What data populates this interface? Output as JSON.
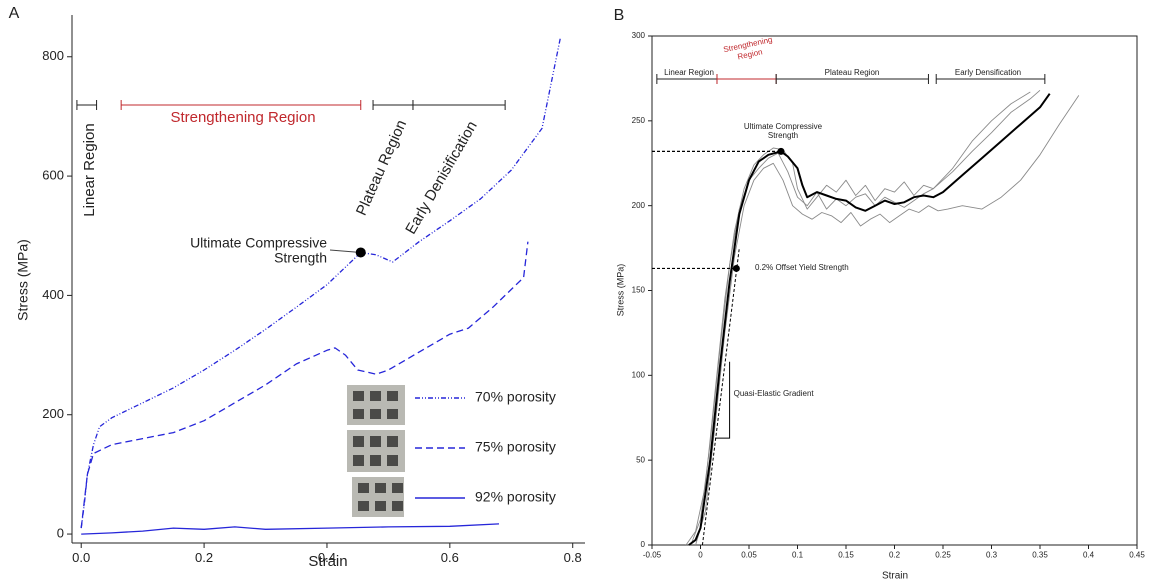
{
  "chart_data": [
    {
      "type": "line",
      "panel_label": "A",
      "xlabel": "Strain",
      "ylabel": "Stress (MPa)",
      "xlim": [
        -0.015,
        0.82
      ],
      "ylim": [
        -15,
        870
      ],
      "xticks": [
        {
          "value": 0,
          "label": "0.0"
        },
        0.2,
        0.4,
        0.6,
        0.8
      ],
      "yticks": [
        0,
        200,
        400,
        600,
        800
      ],
      "grid": false,
      "legend": "lower right",
      "regions": [
        {
          "label": [
            "Linear Region"
          ],
          "x": [
            -0.007,
            0.025
          ],
          "color": "#222222"
        },
        {
          "label": [
            "Strengthening Region"
          ],
          "x": [
            0.065,
            0.455
          ],
          "color": "#c0282d"
        },
        {
          "label": [
            "Plateau Region"
          ],
          "x": [
            0.475,
            0.54
          ],
          "color": "#222222"
        },
        {
          "label": [
            "Early Denisification"
          ],
          "x": [
            0.54,
            0.69
          ],
          "color": "#222222"
        }
      ],
      "annotations": [
        {
          "label": [
            "Ultimate Compressive",
            "Strength"
          ],
          "x": 0.455,
          "y": 472,
          "guide": false
        }
      ],
      "series": [
        {
          "name": "70% porosity",
          "color": "#2626d9",
          "dash": "dashdot",
          "x": [
            0,
            0.005,
            0.01,
            0.02,
            0.03,
            0.05,
            0.1,
            0.15,
            0.2,
            0.25,
            0.3,
            0.35,
            0.4,
            0.455,
            0.48,
            0.507,
            0.55,
            0.6,
            0.65,
            0.7,
            0.75,
            0.78
          ],
          "values": [
            10,
            50,
            100,
            150,
            180,
            195,
            220,
            245,
            275,
            308,
            343,
            380,
            418,
            472,
            468,
            456,
            490,
            525,
            562,
            610,
            680,
            832
          ]
        },
        {
          "name": "75% porosity",
          "color": "#2626d9",
          "dash": "dashed",
          "x": [
            0,
            0.01,
            0.02,
            0.05,
            0.1,
            0.15,
            0.2,
            0.25,
            0.3,
            0.35,
            0.4,
            0.413,
            0.43,
            0.45,
            0.48,
            0.5,
            0.55,
            0.6,
            0.63,
            0.67,
            0.7,
            0.72,
            0.727
          ],
          "values": [
            10,
            100,
            135,
            150,
            160,
            170,
            190,
            220,
            250,
            285,
            308,
            312,
            300,
            275,
            268,
            275,
            305,
            335,
            345,
            380,
            410,
            430,
            490
          ]
        },
        {
          "name": "92% porosity",
          "color": "#2626d9",
          "dash": "solid",
          "x": [
            0,
            0.05,
            0.1,
            0.15,
            0.2,
            0.25,
            0.3,
            0.4,
            0.5,
            0.6,
            0.68
          ],
          "values": [
            0,
            2,
            5,
            10,
            8,
            12,
            8,
            10,
            12,
            13,
            17
          ]
        }
      ]
    },
    {
      "type": "line",
      "panel_label": "B",
      "xlabel": "Strain",
      "ylabel": "Stress (MPa)",
      "xlim": [
        -0.05,
        0.45
      ],
      "ylim": [
        0,
        300
      ],
      "xticks": [
        -0.05,
        0,
        0.05,
        0.1,
        0.15,
        0.2,
        0.25,
        0.3,
        0.35,
        0.4,
        0.45
      ],
      "yticks": [
        0,
        50,
        100,
        150,
        200,
        250,
        300
      ],
      "grid": false,
      "regions": [
        {
          "label": [
            "Linear Region"
          ],
          "x": [
            -0.045,
            0.017
          ],
          "color": "#222222"
        },
        {
          "label": [
            "Strengthening",
            "Region"
          ],
          "x": [
            0.017,
            0.078
          ],
          "color": "#c0282d"
        },
        {
          "label": [
            "Plateau Region"
          ],
          "x": [
            0.078,
            0.235
          ],
          "color": "#222222"
        },
        {
          "label": [
            "Early Densification"
          ],
          "x": [
            0.243,
            0.355
          ],
          "color": "#222222"
        }
      ],
      "annotations": [
        {
          "label": [
            "Ultimate Compressive",
            "Strength"
          ],
          "x": 0.083,
          "y": 232,
          "guide": true
        },
        {
          "label": [
            "0.2% Offset Yield Strength"
          ],
          "x": 0.037,
          "y": 163,
          "guide": true
        }
      ],
      "offset_line": {
        "x": [
          0.002,
          0.04
        ],
        "y": [
          0,
          175
        ]
      },
      "gradient": {
        "label": "Quasi-Elastic Gradient",
        "x": [
          0.015,
          0.03
        ],
        "y": [
          63,
          108
        ]
      },
      "series": [
        {
          "color": "#8a8a8a",
          "width": 0.9,
          "x": [
            -0.015,
            -0.005,
            0.005,
            0.015,
            0.025,
            0.035,
            0.045,
            0.055,
            0.065,
            0.075,
            0.085,
            0.095,
            0.1,
            0.11,
            0.12,
            0.13,
            0.14,
            0.15,
            0.16,
            0.17,
            0.18,
            0.19,
            0.2,
            0.21,
            0.22,
            0.23,
            0.24,
            0.26,
            0.28,
            0.3,
            0.32,
            0.34
          ],
          "values": [
            0,
            8,
            35,
            90,
            145,
            185,
            210,
            224,
            230,
            234,
            233,
            225,
            210,
            198,
            205,
            212,
            208,
            215,
            206,
            212,
            203,
            210,
            208,
            214,
            206,
            212,
            210,
            222,
            238,
            250,
            260,
            267
          ]
        },
        {
          "color": "#8a8a8a",
          "width": 0.9,
          "x": [
            -0.005,
            0.005,
            0.015,
            0.025,
            0.035,
            0.045,
            0.055,
            0.065,
            0.075,
            0.085,
            0.095,
            0.105,
            0.115,
            0.125,
            0.135,
            0.145,
            0.155,
            0.165,
            0.175,
            0.185,
            0.195,
            0.205,
            0.215,
            0.225,
            0.235,
            0.245,
            0.255,
            0.27,
            0.29,
            0.31,
            0.33,
            0.35,
            0.37,
            0.39
          ],
          "values": [
            0,
            20,
            70,
            125,
            170,
            200,
            215,
            222,
            225,
            215,
            200,
            195,
            192,
            196,
            194,
            190,
            196,
            188,
            192,
            195,
            190,
            194,
            198,
            196,
            200,
            197,
            198,
            200,
            198,
            205,
            215,
            230,
            248,
            265
          ]
        },
        {
          "color": "#8a8a8a",
          "width": 0.9,
          "x": [
            -0.01,
            0,
            0.01,
            0.02,
            0.03,
            0.04,
            0.05,
            0.06,
            0.07,
            0.08,
            0.09,
            0.1,
            0.11,
            0.12,
            0.13,
            0.14,
            0.15,
            0.16,
            0.17,
            0.18,
            0.19,
            0.2,
            0.21,
            0.22,
            0.23,
            0.24,
            0.26,
            0.28,
            0.3,
            0.32,
            0.34,
            0.35
          ],
          "values": [
            0,
            15,
            60,
            115,
            165,
            198,
            215,
            222,
            228,
            231,
            220,
            205,
            200,
            208,
            198,
            204,
            200,
            205,
            207,
            200,
            205,
            202,
            199,
            203,
            207,
            210,
            220,
            232,
            243,
            255,
            263,
            268
          ]
        },
        {
          "color": "#000000",
          "width": 2,
          "x": [
            -0.012,
            -0.005,
            0,
            0.01,
            0.02,
            0.03,
            0.04,
            0.05,
            0.06,
            0.07,
            0.083,
            0.09,
            0.1,
            0.105,
            0.11,
            0.12,
            0.13,
            0.14,
            0.15,
            0.16,
            0.17,
            0.18,
            0.19,
            0.2,
            0.21,
            0.22,
            0.23,
            0.24,
            0.25,
            0.27,
            0.29,
            0.31,
            0.33,
            0.35,
            0.36
          ],
          "values": [
            0,
            3,
            10,
            50,
            105,
            155,
            195,
            215,
            226,
            230,
            232,
            229,
            222,
            212,
            205,
            208,
            206,
            204,
            203,
            199,
            197,
            200,
            203,
            201,
            202,
            205,
            206,
            205,
            208,
            218,
            228,
            238,
            248,
            258,
            266
          ]
        }
      ]
    }
  ]
}
